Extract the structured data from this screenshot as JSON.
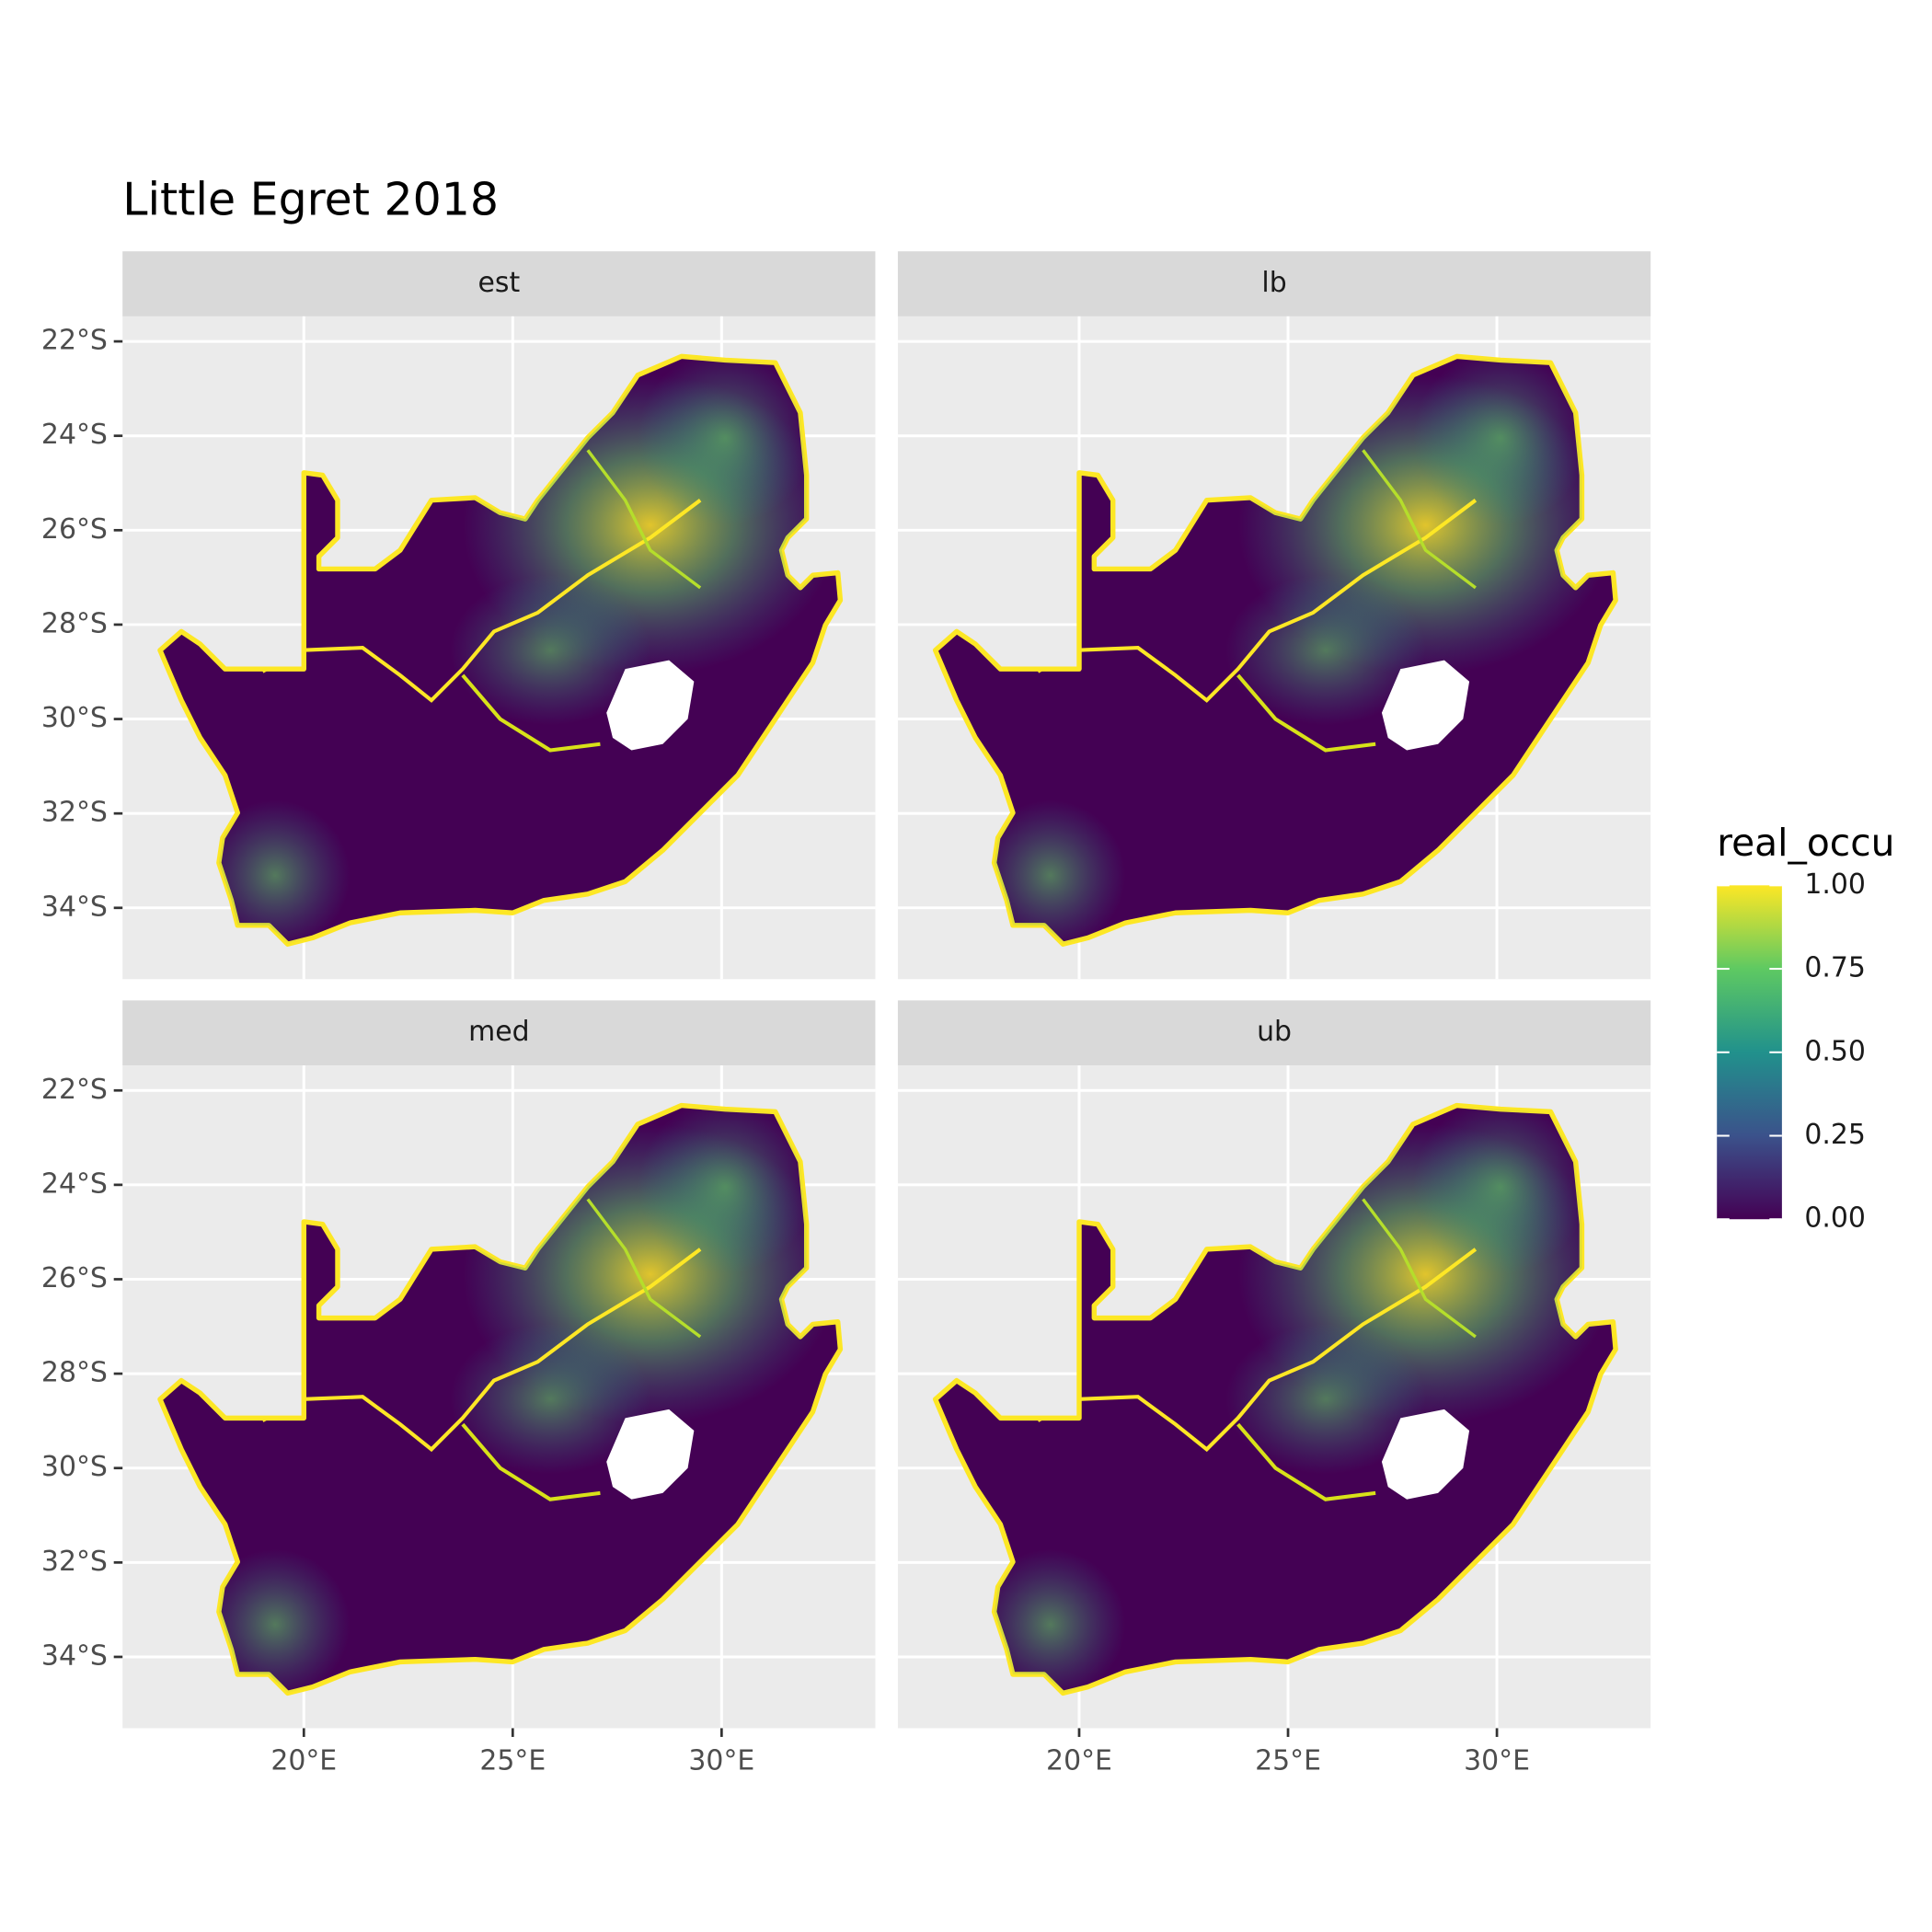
{
  "title": "Little Egret 2018",
  "panels": [
    "est",
    "lb",
    "med",
    "ub"
  ],
  "x_axis": {
    "lim": [
      15.66,
      33.68
    ],
    "ticks": [
      {
        "value": 20,
        "label": "20°E"
      },
      {
        "value": 25,
        "label": "25°E"
      },
      {
        "value": 30,
        "label": "30°E"
      }
    ]
  },
  "y_axis": {
    "lim": [
      -35.51,
      -21.47
    ],
    "ticks": [
      {
        "value": -22,
        "label": "22°S"
      },
      {
        "value": -24,
        "label": "24°S"
      },
      {
        "value": -26,
        "label": "26°S"
      },
      {
        "value": -28,
        "label": "28°S"
      },
      {
        "value": -30,
        "label": "30°S"
      },
      {
        "value": -32,
        "label": "32°S"
      },
      {
        "value": -34,
        "label": "34°S"
      }
    ]
  },
  "legend": {
    "title": "real_occu",
    "lim": [
      0,
      1
    ],
    "ticks": [
      {
        "value": 0,
        "label": "0.00"
      },
      {
        "value": 0.25,
        "label": "0.25"
      },
      {
        "value": 0.5,
        "label": "0.50"
      },
      {
        "value": 0.75,
        "label": "0.75"
      },
      {
        "value": 1,
        "label": "1.00"
      }
    ],
    "colors": [
      "#440154",
      "#3b528b",
      "#21918c",
      "#5ec962",
      "#fde725"
    ]
  }
}
